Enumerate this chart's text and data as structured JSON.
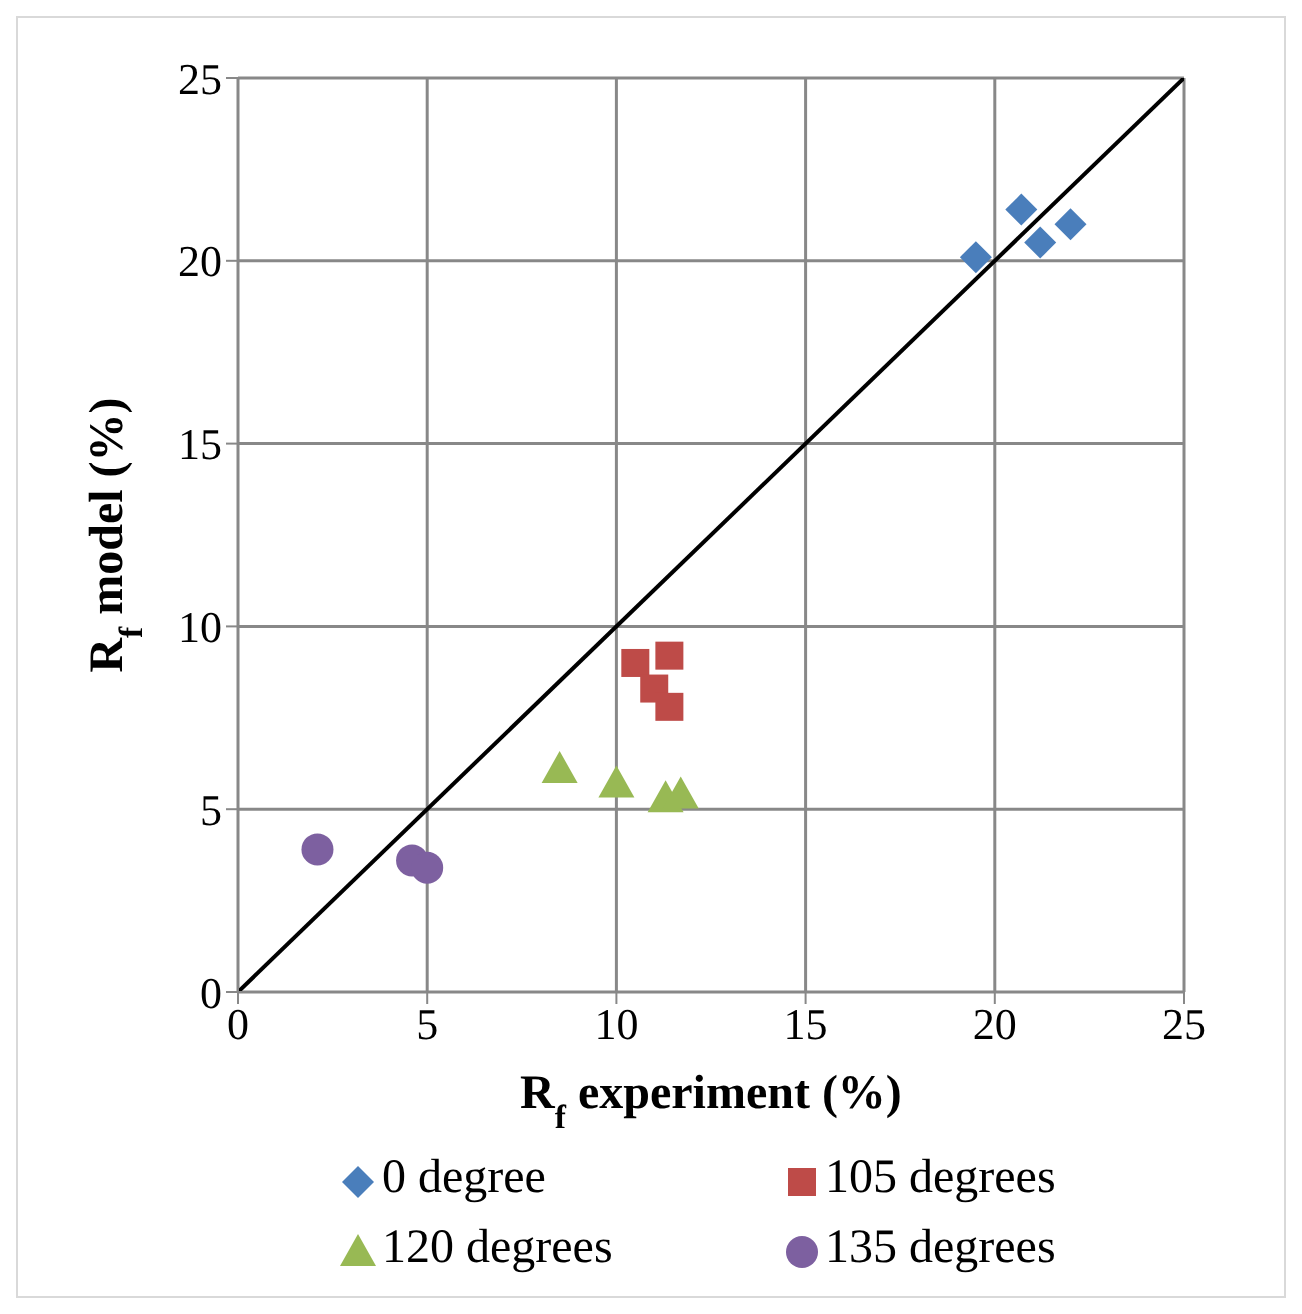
{
  "chart_data": {
    "type": "scatter",
    "xlabel": "R$_{f}$ experiment (%)",
    "ylabel": "R$_{f}$  model (%)",
    "xlim": [
      0,
      25
    ],
    "ylim": [
      0,
      25
    ],
    "xticks": [
      0,
      5,
      10,
      15,
      20,
      25
    ],
    "yticks": [
      0,
      5,
      10,
      15,
      20,
      25
    ],
    "grid": true,
    "legend": "bottom",
    "series": [
      {
        "name": "0 degree",
        "color": "#4a7ebb",
        "marker": "diamond",
        "x": [
          19.5,
          20.7,
          21.2,
          22.0
        ],
        "values": [
          20.1,
          21.4,
          20.5,
          21.0
        ]
      },
      {
        "name": "105 degrees",
        "color": "#be4b48",
        "marker": "square",
        "x": [
          10.5,
          11.4,
          11.0,
          11.4
        ],
        "values": [
          9.0,
          9.2,
          8.3,
          7.8
        ]
      },
      {
        "name": "120 degrees",
        "color": "#98b954",
        "marker": "triangle",
        "x": [
          8.5,
          10.0,
          11.3,
          11.7
        ],
        "values": [
          6.1,
          5.7,
          5.3,
          5.4
        ]
      },
      {
        "name": "135 degrees",
        "color": "#7d60a0",
        "marker": "circle",
        "x": [
          2.1,
          4.6,
          5.0
        ],
        "values": [
          3.9,
          3.6,
          3.4
        ]
      },
      {
        "type": "line",
        "color": "#000000",
        "marker": "none",
        "x": [
          0,
          25
        ],
        "values": [
          0,
          25
        ]
      }
    ]
  }
}
